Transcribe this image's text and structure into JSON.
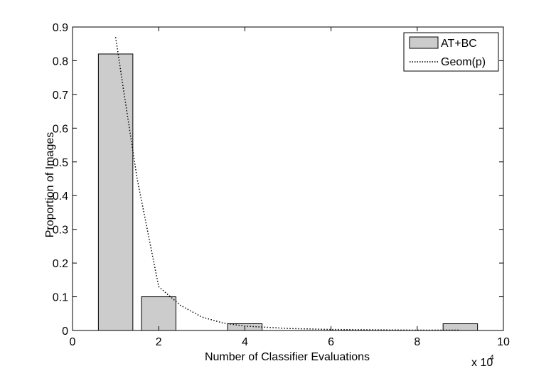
{
  "chart_data": {
    "type": "bar",
    "xlabel": "Number of Classifier Evaluations",
    "ylabel": "Proportion of Images",
    "x_multiplier_label": "x 10",
    "x_multiplier_exp": "4",
    "xlim": [
      0,
      10
    ],
    "ylim": [
      0,
      0.9
    ],
    "x_ticks": [
      "0",
      "2",
      "4",
      "6",
      "8",
      "10"
    ],
    "y_ticks": [
      "0",
      "0.1",
      "0.2",
      "0.3",
      "0.4",
      "0.5",
      "0.6",
      "0.7",
      "0.8",
      "0.9"
    ],
    "legend_position": "top-right",
    "bar_width": 0.8,
    "series": [
      {
        "name": "AT+BC",
        "type": "bar",
        "color": "#cccccc",
        "x": [
          1,
          2,
          4,
          9
        ],
        "values": [
          0.82,
          0.1,
          0.02,
          0.02
        ]
      },
      {
        "name": "Geom(p)",
        "type": "line",
        "style": "dotted",
        "color": "#000000",
        "x": [
          1,
          1.2,
          1.5,
          2,
          2.5,
          3,
          3.5,
          4,
          5,
          6,
          7,
          8,
          9
        ],
        "values": [
          0.87,
          0.7,
          0.45,
          0.13,
          0.075,
          0.04,
          0.022,
          0.013,
          0.006,
          0.003,
          0.002,
          0.001,
          0.001
        ]
      }
    ]
  }
}
